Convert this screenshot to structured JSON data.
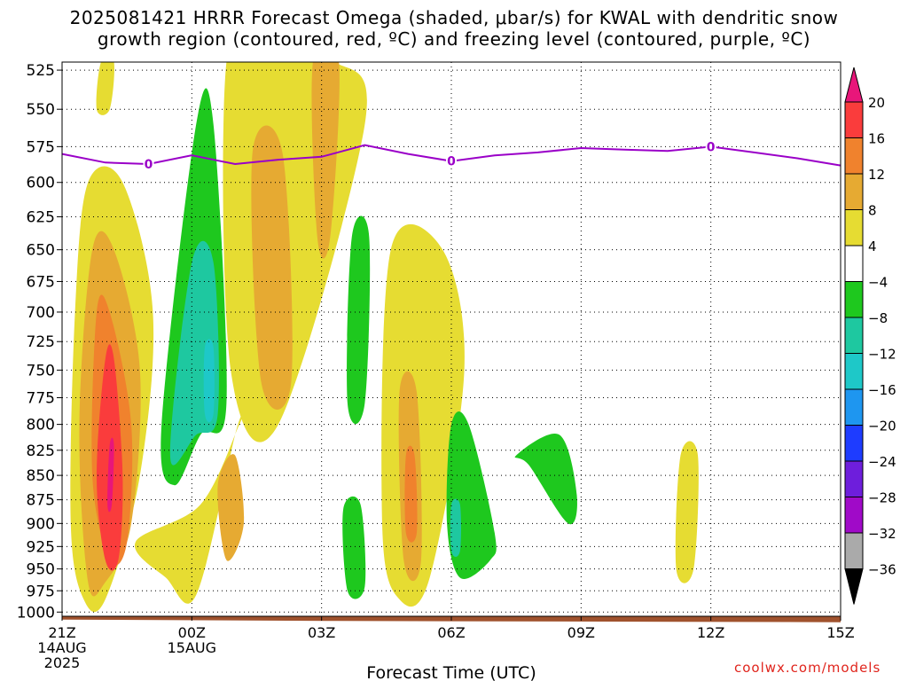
{
  "title_line1": "2025081421 HRRR Forecast Omega (shaded, μbar/s) for KWAL with dendritic snow",
  "title_line2": "growth region (contoured, red, ºC) and freezing level (contoured, purple, ºC)",
  "credit": "coolwx.com/models",
  "chart_data": {
    "type": "heatmap",
    "title": "2025081421 HRRR Forecast Omega (shaded, μbar/s) for KWAL with dendritic snow growth region (contoured, red, ºC) and freezing level (contoured, purple, ºC)",
    "xlabel": "Forecast Time (UTC)",
    "ylabel": "",
    "x_hours": [
      0,
      3,
      6,
      9,
      12,
      15,
      18
    ],
    "x_ticks": [
      {
        "h": 0,
        "label": "21Z",
        "sub1": "14AUG",
        "sub2": "2025"
      },
      {
        "h": 3,
        "label": "00Z",
        "sub1": "15AUG",
        "sub2": ""
      },
      {
        "h": 6,
        "label": "03Z",
        "sub1": "",
        "sub2": ""
      },
      {
        "h": 9,
        "label": "06Z",
        "sub1": "",
        "sub2": ""
      },
      {
        "h": 12,
        "label": "09Z",
        "sub1": "",
        "sub2": ""
      },
      {
        "h": 15,
        "label": "12Z",
        "sub1": "",
        "sub2": ""
      },
      {
        "h": 18,
        "label": "15Z",
        "sub1": "",
        "sub2": ""
      }
    ],
    "xlim": [
      0,
      18
    ],
    "y_ticks": [
      "525",
      "550",
      "575",
      "600",
      "625",
      "650",
      "675",
      "700",
      "725",
      "750",
      "775",
      "800",
      "825",
      "850",
      "875",
      "900",
      "925",
      "950",
      "975",
      "1000"
    ],
    "ylim_hPa": [
      520,
      1005
    ],
    "y_scale": "log-pressure (inverted)",
    "grid": true,
    "colorbar": {
      "labels": [
        "20",
        "16",
        "12",
        "8",
        "4",
        "−4",
        "−8",
        "−12",
        "−16",
        "−20",
        "−24",
        "−28",
        "−32",
        "−36"
      ],
      "colors": [
        "#e8167a",
        "#fa3c3c",
        "#f0822d",
        "#e6aa32",
        "#e6dc32",
        "#ffffff",
        "#1ec81e",
        "#1ec8a0",
        "#1ec8c8",
        "#1e96f0",
        "#1e3cff",
        "#6e1edc",
        "#a00ac8",
        "#aaaaaa"
      ],
      "placement": "right"
    },
    "omega_regions": [
      {
        "level": 4,
        "color": "#e6dc32",
        "hours": [
          0.6,
          1.4,
          2.1,
          1.8,
          1.0,
          0.5,
          0.2,
          0.3
        ],
        "pressures": [
          600,
          600,
          700,
          850,
          985,
          985,
          900,
          700
        ]
      },
      {
        "level": 8,
        "color": "#e6aa32",
        "hours": [
          0.7,
          1.2,
          1.8,
          1.6,
          1.0,
          0.6,
          0.4
        ],
        "pressures": [
          650,
          650,
          750,
          900,
          965,
          965,
          800
        ]
      },
      {
        "level": 12,
        "color": "#f0822d",
        "hours": [
          0.8,
          1.1,
          1.6,
          1.5,
          1.1,
          0.7
        ],
        "pressures": [
          700,
          700,
          800,
          920,
          940,
          850
        ]
      },
      {
        "level": 16,
        "color": "#fa3c3c",
        "hours": [
          1.0,
          1.2,
          1.4,
          1.3,
          1.0,
          0.8
        ],
        "pressures": [
          740,
          740,
          850,
          940,
          940,
          850
        ]
      },
      {
        "level": 20,
        "color": "#e8167a",
        "hours": [
          1.1,
          1.2,
          1.15,
          1.05
        ],
        "pressures": [
          820,
          820,
          880,
          880
        ]
      },
      {
        "level": 4,
        "color": "#e6dc32",
        "hours": [
          0.9,
          1.2,
          1.1,
          0.8
        ],
        "pressures": [
          520,
          520,
          550,
          550
        ]
      },
      {
        "level": 4,
        "color": "#e6dc32",
        "hours": [
          3.8,
          4.7,
          6.3,
          7.0,
          5.0,
          3.9
        ],
        "pressures": [
          520,
          520,
          520,
          560,
          800,
          750
        ]
      },
      {
        "level": 8,
        "color": "#e6aa32",
        "hours": [
          4.4,
          5.1,
          5.3,
          4.6
        ],
        "pressures": [
          580,
          580,
          760,
          760
        ]
      },
      {
        "level": 8,
        "color": "#e6aa32",
        "hours": [
          5.8,
          6.4,
          6.2,
          5.9
        ],
        "pressures": [
          520,
          520,
          640,
          640
        ]
      },
      {
        "level": 4,
        "color": "#e6dc32",
        "hours": [
          1.7,
          3.2,
          4.1,
          4.0,
          3.1,
          2.4
        ],
        "pressures": [
          920,
          880,
          800,
          810,
          980,
          960
        ]
      },
      {
        "level": 8,
        "color": "#e6aa32",
        "hours": [
          3.6,
          4.0,
          4.2,
          3.8
        ],
        "pressures": [
          860,
          830,
          900,
          940
        ]
      },
      {
        "level": 4,
        "color": "#e6dc32",
        "hours": [
          7.6,
          8.8,
          9.3,
          8.5,
          7.8,
          7.4
        ],
        "pressures": [
          650,
          650,
          750,
          960,
          985,
          900
        ]
      },
      {
        "level": 8,
        "color": "#e6aa32",
        "hours": [
          7.8,
          8.2,
          8.3,
          7.9
        ],
        "pressures": [
          770,
          770,
          940,
          940
        ]
      },
      {
        "level": 12,
        "color": "#f0822d",
        "hours": [
          7.95,
          8.15,
          8.2,
          7.95
        ],
        "pressures": [
          830,
          830,
          910,
          910
        ]
      },
      {
        "level": 4,
        "color": "#e6dc32",
        "hours": [
          14.3,
          14.7,
          14.6,
          14.2
        ],
        "pressures": [
          830,
          830,
          950,
          950
        ]
      },
      {
        "level": -4,
        "color": "#1ec81e",
        "hours": [
          3.1,
          3.5,
          3.8,
          3.2,
          2.6,
          2.3
        ],
        "pressures": [
          560,
          560,
          780,
          810,
          860,
          800
        ]
      },
      {
        "level": -8,
        "color": "#1ec8a0",
        "hours": [
          3.0,
          3.5,
          3.6,
          3.1,
          2.5
        ],
        "pressures": [
          660,
          660,
          790,
          810,
          830
        ]
      },
      {
        "level": -12,
        "color": "#1ec8c8",
        "hours": [
          3.3,
          3.5,
          3.5,
          3.3
        ],
        "pressures": [
          730,
          730,
          790,
          790
        ]
      },
      {
        "level": -4,
        "color": "#1ec81e",
        "hours": [
          6.7,
          7.1,
          7.0,
          6.6
        ],
        "pressures": [
          640,
          640,
          780,
          780
        ]
      },
      {
        "level": -4,
        "color": "#1ec81e",
        "hours": [
          6.5,
          6.9,
          7.0,
          6.6
        ],
        "pressures": [
          885,
          880,
          970,
          975
        ]
      },
      {
        "level": -4,
        "color": "#1ec81e",
        "hours": [
          9.0,
          9.4,
          10.0,
          9.9,
          9.2,
          8.9
        ],
        "pressures": [
          800,
          800,
          910,
          940,
          960,
          900
        ]
      },
      {
        "level": -8,
        "color": "#1ec8a0",
        "hours": [
          9.0,
          9.2,
          9.2,
          9.0
        ],
        "pressures": [
          880,
          880,
          930,
          930
        ]
      },
      {
        "level": -4,
        "color": "#1ec81e",
        "hours": [
          10.5,
          11.5,
          11.9,
          11.7,
          10.8
        ],
        "pressures": [
          830,
          810,
          870,
          900,
          840
        ]
      }
    ],
    "freezing_level": {
      "label": "0",
      "color": "#9a00c8",
      "hours": [
        0,
        1,
        2,
        3,
        4,
        5,
        6,
        7,
        8,
        9,
        10,
        11,
        12,
        13,
        14,
        15,
        16,
        17,
        18
      ],
      "pressures": [
        580,
        586,
        587,
        581,
        587,
        584,
        582,
        574,
        580,
        585,
        581,
        579,
        576,
        577,
        578,
        575,
        579,
        583,
        588
      ],
      "label_hours": [
        2,
        9,
        15
      ]
    },
    "terrain": {
      "color": "#a0522d",
      "top_hPa": 1010
    }
  }
}
